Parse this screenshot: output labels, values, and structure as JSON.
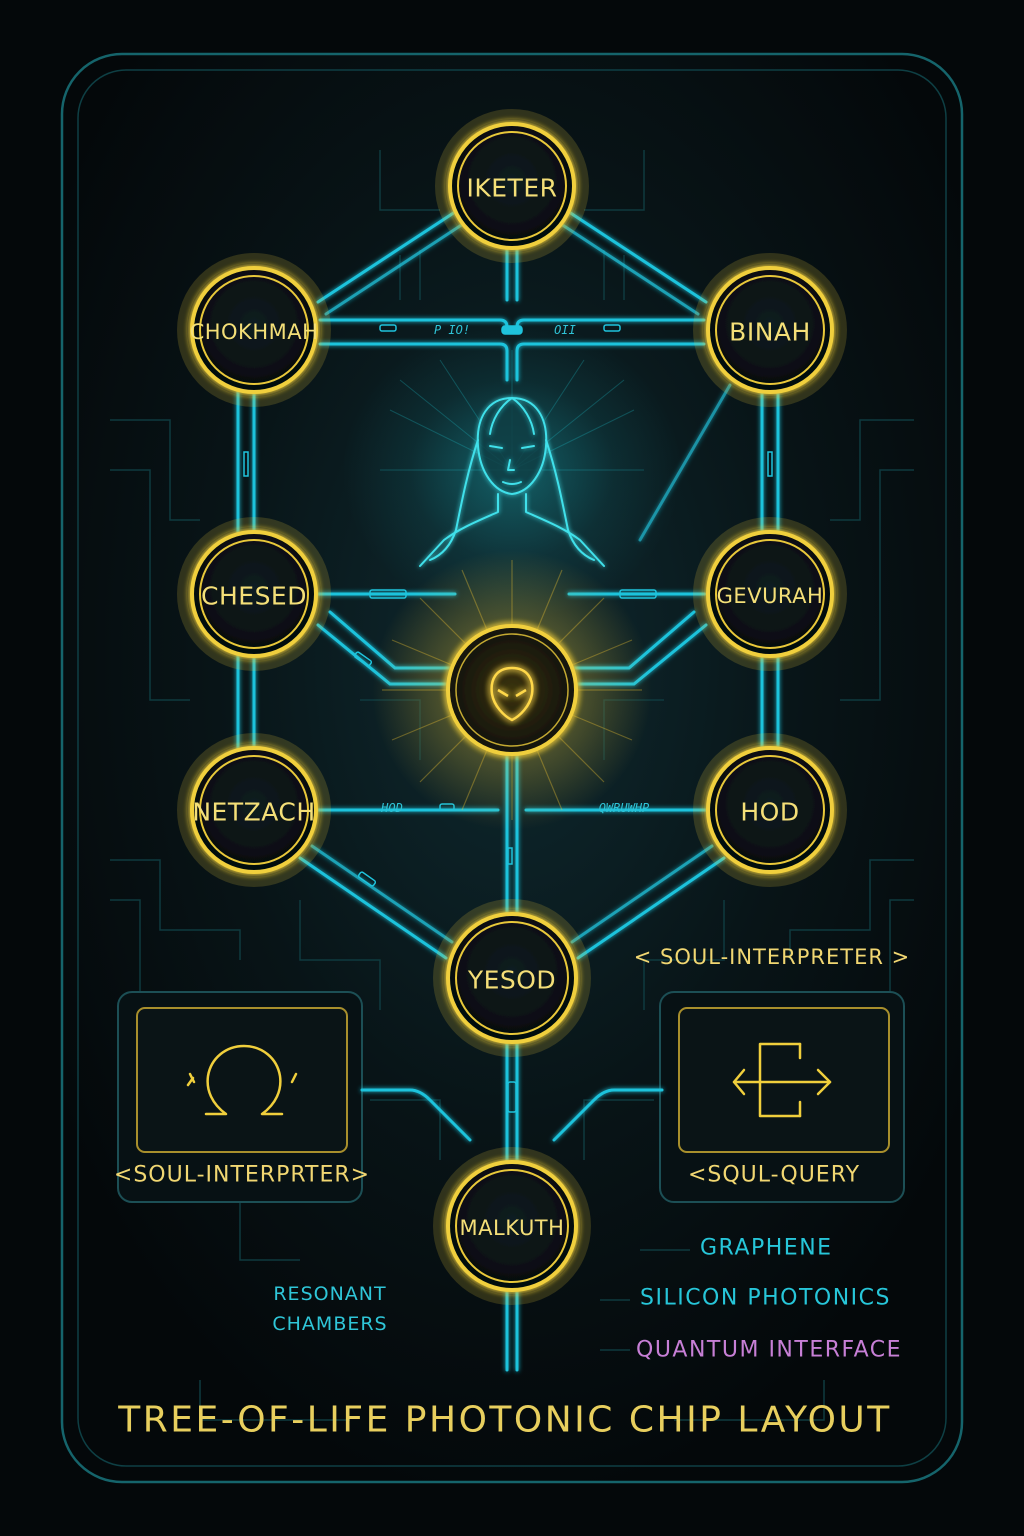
{
  "title": "TREE-OF-LIFE PHOTONIC CHIP LAYOUT",
  "nodes": {
    "keter": "IKETER",
    "chokhmah": "CHOKHMAH",
    "binah": "BINAH",
    "chesed": "CHESED",
    "gevurah": "GEVURAH",
    "netzach": "NETZACH",
    "hod": "HOD",
    "yesod": "YESOD",
    "malkuth": "MALKUTH"
  },
  "path_labels": {
    "upper_left": "P IO!",
    "upper_right": "OII",
    "middle_left": "HOD",
    "middle_right": "QWRUWHP"
  },
  "modules": {
    "left_label": "<SOUL-INTERPRTER>",
    "right_label": "<SQUL-QUERY",
    "top_right_tag": "< SOUL-INTERPRETER >"
  },
  "resonant": {
    "line1": "RESONANT",
    "line2": "CHAMBERS"
  },
  "legend": [
    {
      "label": "GRAPHENE",
      "color": "#27c6d9"
    },
    {
      "label": "SILICON PHOTONICS",
      "color": "#27c6d9"
    },
    {
      "label": "QUANTUM INTERFACE",
      "color": "#c77fd6"
    }
  ],
  "colors": {
    "gold": "#f0cf3c",
    "cyan": "#1fc3dc",
    "frame": "#13585e",
    "background": "#05090c"
  },
  "icons": {
    "center_core": "alien-head-icon",
    "left_module": "omega-icon",
    "right_module": "query-arrows-icon",
    "figure": "meditating-figure-icon"
  }
}
